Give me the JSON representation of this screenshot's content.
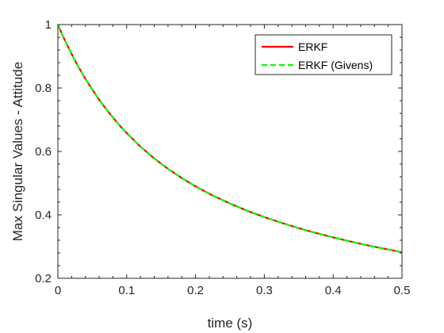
{
  "chart_data": {
    "type": "line",
    "xlabel": "time (s)",
    "ylabel": "Max Singular Values - Attitude",
    "xlim": [
      0,
      0.5
    ],
    "ylim": [
      0.2,
      1
    ],
    "xticks": [
      0,
      0.1,
      0.2,
      0.3,
      0.4,
      0.5
    ],
    "yticks": [
      0.2,
      0.4,
      0.6,
      0.8,
      1
    ],
    "xtick_labels": [
      "0",
      "0.1",
      "0.2",
      "0.3",
      "0.4",
      "0.5"
    ],
    "ytick_labels": [
      "0.2",
      "0.4",
      "0.6",
      "0.8",
      "1"
    ],
    "grid": false,
    "legend_position": "top-right",
    "x": [
      0,
      0.005,
      0.01,
      0.02,
      0.03,
      0.04,
      0.05,
      0.06,
      0.07,
      0.08,
      0.09,
      0.1,
      0.12,
      0.14,
      0.16,
      0.18,
      0.2,
      0.225,
      0.25,
      0.275,
      0.3,
      0.325,
      0.35,
      0.375,
      0.4,
      0.425,
      0.45,
      0.475,
      0.5
    ],
    "series": [
      {
        "name": "ERKF",
        "color": "#ff0000",
        "style": "solid",
        "values": [
          1.0,
          0.975,
          0.951,
          0.907,
          0.866,
          0.829,
          0.795,
          0.763,
          0.734,
          0.707,
          0.681,
          0.658,
          0.615,
          0.578,
          0.545,
          0.516,
          0.49,
          0.461,
          0.436,
          0.413,
          0.393,
          0.375,
          0.358,
          0.343,
          0.329,
          0.316,
          0.304,
          0.293,
          0.282
        ]
      },
      {
        "name": "ERKF (Givens)",
        "color": "#00ff00",
        "style": "dashed",
        "values": [
          1.0,
          0.975,
          0.951,
          0.907,
          0.866,
          0.829,
          0.795,
          0.763,
          0.734,
          0.707,
          0.681,
          0.658,
          0.615,
          0.578,
          0.545,
          0.516,
          0.49,
          0.461,
          0.436,
          0.413,
          0.393,
          0.375,
          0.358,
          0.343,
          0.329,
          0.316,
          0.304,
          0.293,
          0.282
        ]
      }
    ]
  }
}
